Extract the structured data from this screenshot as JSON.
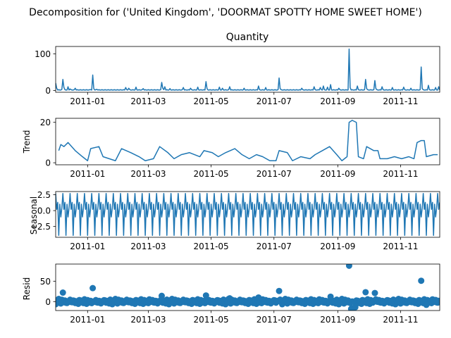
{
  "figure": {
    "suptitle": "Decomposition for ('United Kingdom', 'DOORMAT SPOTTY HOME SWEET HOME')"
  },
  "chart_data": [
    {
      "type": "line",
      "panel": "observed",
      "title": "Quantity",
      "ylabel": "",
      "color": "#1f77b4",
      "x_range": [
        "2010-12-01",
        "2011-12-09"
      ],
      "ylim": [
        -5,
        120
      ],
      "yticks": [
        0,
        100
      ],
      "xticks": [
        "2011-01",
        "2011-03",
        "2011-05",
        "2011-07",
        "2011-09",
        "2011-11"
      ],
      "baseline": 1,
      "points": [
        [
          "2010-12-01",
          20
        ],
        [
          "2010-12-02",
          6
        ],
        [
          "2010-12-07",
          3
        ],
        [
          "2010-12-08",
          30
        ],
        [
          "2010-12-09",
          8
        ],
        [
          "2010-12-13",
          10
        ],
        [
          "2010-12-15",
          4
        ],
        [
          "2010-12-20",
          6
        ],
        [
          "2011-01-04",
          2
        ],
        [
          "2011-01-06",
          42
        ],
        [
          "2011-01-07",
          5
        ],
        [
          "2011-01-10",
          3
        ],
        [
          "2011-02-07",
          8
        ],
        [
          "2011-02-10",
          6
        ],
        [
          "2011-02-17",
          9
        ],
        [
          "2011-02-24",
          5
        ],
        [
          "2011-03-14",
          22
        ],
        [
          "2011-03-15",
          6
        ],
        [
          "2011-03-17",
          10
        ],
        [
          "2011-03-22",
          5
        ],
        [
          "2011-04-04",
          8
        ],
        [
          "2011-04-11",
          6
        ],
        [
          "2011-04-18",
          9
        ],
        [
          "2011-04-26",
          24
        ],
        [
          "2011-04-27",
          5
        ],
        [
          "2011-05-09",
          9
        ],
        [
          "2011-05-12",
          6
        ],
        [
          "2011-05-19",
          10
        ],
        [
          "2011-06-02",
          6
        ],
        [
          "2011-06-16",
          12
        ],
        [
          "2011-06-23",
          8
        ],
        [
          "2011-07-06",
          34
        ],
        [
          "2011-07-07",
          5
        ],
        [
          "2011-07-28",
          6
        ],
        [
          "2011-08-09",
          10
        ],
        [
          "2011-08-15",
          8
        ],
        [
          "2011-08-18",
          12
        ],
        [
          "2011-08-22",
          9
        ],
        [
          "2011-08-25",
          16
        ],
        [
          "2011-09-02",
          6
        ],
        [
          "2011-09-12",
          113
        ],
        [
          "2011-09-13",
          8
        ],
        [
          "2011-09-20",
          12
        ],
        [
          "2011-09-28",
          30
        ],
        [
          "2011-09-29",
          5
        ],
        [
          "2011-10-07",
          27
        ],
        [
          "2011-10-08",
          5
        ],
        [
          "2011-10-14",
          10
        ],
        [
          "2011-10-24",
          8
        ],
        [
          "2011-11-04",
          9
        ],
        [
          "2011-11-11",
          6
        ],
        [
          "2011-11-21",
          64
        ],
        [
          "2011-11-22",
          5
        ],
        [
          "2011-11-28",
          14
        ],
        [
          "2011-12-05",
          8
        ],
        [
          "2011-12-08",
          10
        ]
      ]
    },
    {
      "type": "line",
      "panel": "trend",
      "title": "",
      "ylabel": "Trend",
      "color": "#1f77b4",
      "x_range": [
        "2010-12-01",
        "2011-12-09"
      ],
      "ylim": [
        -1,
        22
      ],
      "yticks": [
        0,
        20
      ],
      "xticks": [
        "2011-01",
        "2011-03",
        "2011-05",
        "2011-07",
        "2011-09",
        "2011-11"
      ],
      "points": [
        [
          "2010-12-04",
          6
        ],
        [
          "2010-12-06",
          9
        ],
        [
          "2010-12-09",
          8
        ],
        [
          "2010-12-13",
          10
        ],
        [
          "2010-12-20",
          6
        ],
        [
          "2010-12-27",
          3
        ],
        [
          "2011-01-01",
          1
        ],
        [
          "2011-01-04",
          7
        ],
        [
          "2011-01-12",
          8
        ],
        [
          "2011-01-16",
          3
        ],
        [
          "2011-01-28",
          1
        ],
        [
          "2011-02-03",
          7
        ],
        [
          "2011-02-12",
          5
        ],
        [
          "2011-02-20",
          3
        ],
        [
          "2011-02-26",
          1
        ],
        [
          "2011-03-06",
          2
        ],
        [
          "2011-03-12",
          8
        ],
        [
          "2011-03-20",
          5
        ],
        [
          "2011-03-26",
          2
        ],
        [
          "2011-04-02",
          4
        ],
        [
          "2011-04-10",
          5
        ],
        [
          "2011-04-20",
          3
        ],
        [
          "2011-04-24",
          6
        ],
        [
          "2011-05-02",
          5
        ],
        [
          "2011-05-08",
          3
        ],
        [
          "2011-05-15",
          5
        ],
        [
          "2011-05-24",
          7
        ],
        [
          "2011-05-31",
          4
        ],
        [
          "2011-06-07",
          2
        ],
        [
          "2011-06-14",
          4
        ],
        [
          "2011-06-20",
          3
        ],
        [
          "2011-06-27",
          1
        ],
        [
          "2011-07-03",
          1
        ],
        [
          "2011-07-06",
          6
        ],
        [
          "2011-07-14",
          5
        ],
        [
          "2011-07-19",
          1
        ],
        [
          "2011-07-27",
          3
        ],
        [
          "2011-08-05",
          2
        ],
        [
          "2011-08-10",
          4
        ],
        [
          "2011-08-17",
          6
        ],
        [
          "2011-08-24",
          8
        ],
        [
          "2011-08-31",
          4
        ],
        [
          "2011-09-05",
          1
        ],
        [
          "2011-09-10",
          3
        ],
        [
          "2011-09-12",
          20
        ],
        [
          "2011-09-15",
          21
        ],
        [
          "2011-09-19",
          20
        ],
        [
          "2011-09-21",
          3
        ],
        [
          "2011-09-26",
          2
        ],
        [
          "2011-09-29",
          8
        ],
        [
          "2011-10-06",
          6
        ],
        [
          "2011-10-10",
          6
        ],
        [
          "2011-10-12",
          2
        ],
        [
          "2011-10-19",
          2
        ],
        [
          "2011-10-26",
          3
        ],
        [
          "2011-11-02",
          2
        ],
        [
          "2011-11-09",
          3
        ],
        [
          "2011-11-14",
          2
        ],
        [
          "2011-11-17",
          10
        ],
        [
          "2011-11-21",
          11
        ],
        [
          "2011-11-24",
          11
        ],
        [
          "2011-11-26",
          3
        ],
        [
          "2011-12-03",
          4
        ],
        [
          "2011-12-07",
          4
        ]
      ]
    },
    {
      "type": "line",
      "panel": "seasonal",
      "title": "",
      "ylabel": "Seasonal",
      "color": "#1f77b4",
      "x_range": [
        "2010-12-01",
        "2011-12-09"
      ],
      "ylim": [
        -4.2,
        3.0
      ],
      "yticks": [
        2.5,
        0.0,
        -2.5
      ],
      "xticks": [
        "2011-01",
        "2011-03",
        "2011-05",
        "2011-07",
        "2011-09",
        "2011-11"
      ],
      "period_days": 7,
      "cycle_values": [
        2.7,
        0.2,
        1.3,
        -3.9,
        1.0,
        -1.0,
        0.4
      ]
    },
    {
      "type": "scatter",
      "panel": "resid",
      "title": "",
      "ylabel": "Resid",
      "color": "#1f77b4",
      "x_range": [
        "2010-12-01",
        "2011-12-09"
      ],
      "ylim": [
        -22,
        92
      ],
      "yticks": [
        0,
        50
      ],
      "xticks": [
        "2011-01",
        "2011-03",
        "2011-05",
        "2011-07",
        "2011-09",
        "2011-11"
      ],
      "zero_line": true,
      "points": [
        [
          "2010-12-08",
          22
        ],
        [
          "2011-01-06",
          33
        ],
        [
          "2011-03-14",
          14
        ],
        [
          "2011-04-26",
          15
        ],
        [
          "2011-05-19",
          8
        ],
        [
          "2011-06-16",
          10
        ],
        [
          "2011-07-06",
          26
        ],
        [
          "2011-08-25",
          12
        ],
        [
          "2011-09-12",
          88
        ],
        [
          "2011-09-14",
          -18
        ],
        [
          "2011-09-16",
          -16
        ],
        [
          "2011-09-18",
          -14
        ],
        [
          "2011-09-28",
          23
        ],
        [
          "2011-10-07",
          21
        ],
        [
          "2011-11-21",
          51
        ],
        [
          "2011-11-26",
          -8
        ],
        [
          "2011-12-05",
          4
        ]
      ]
    }
  ]
}
